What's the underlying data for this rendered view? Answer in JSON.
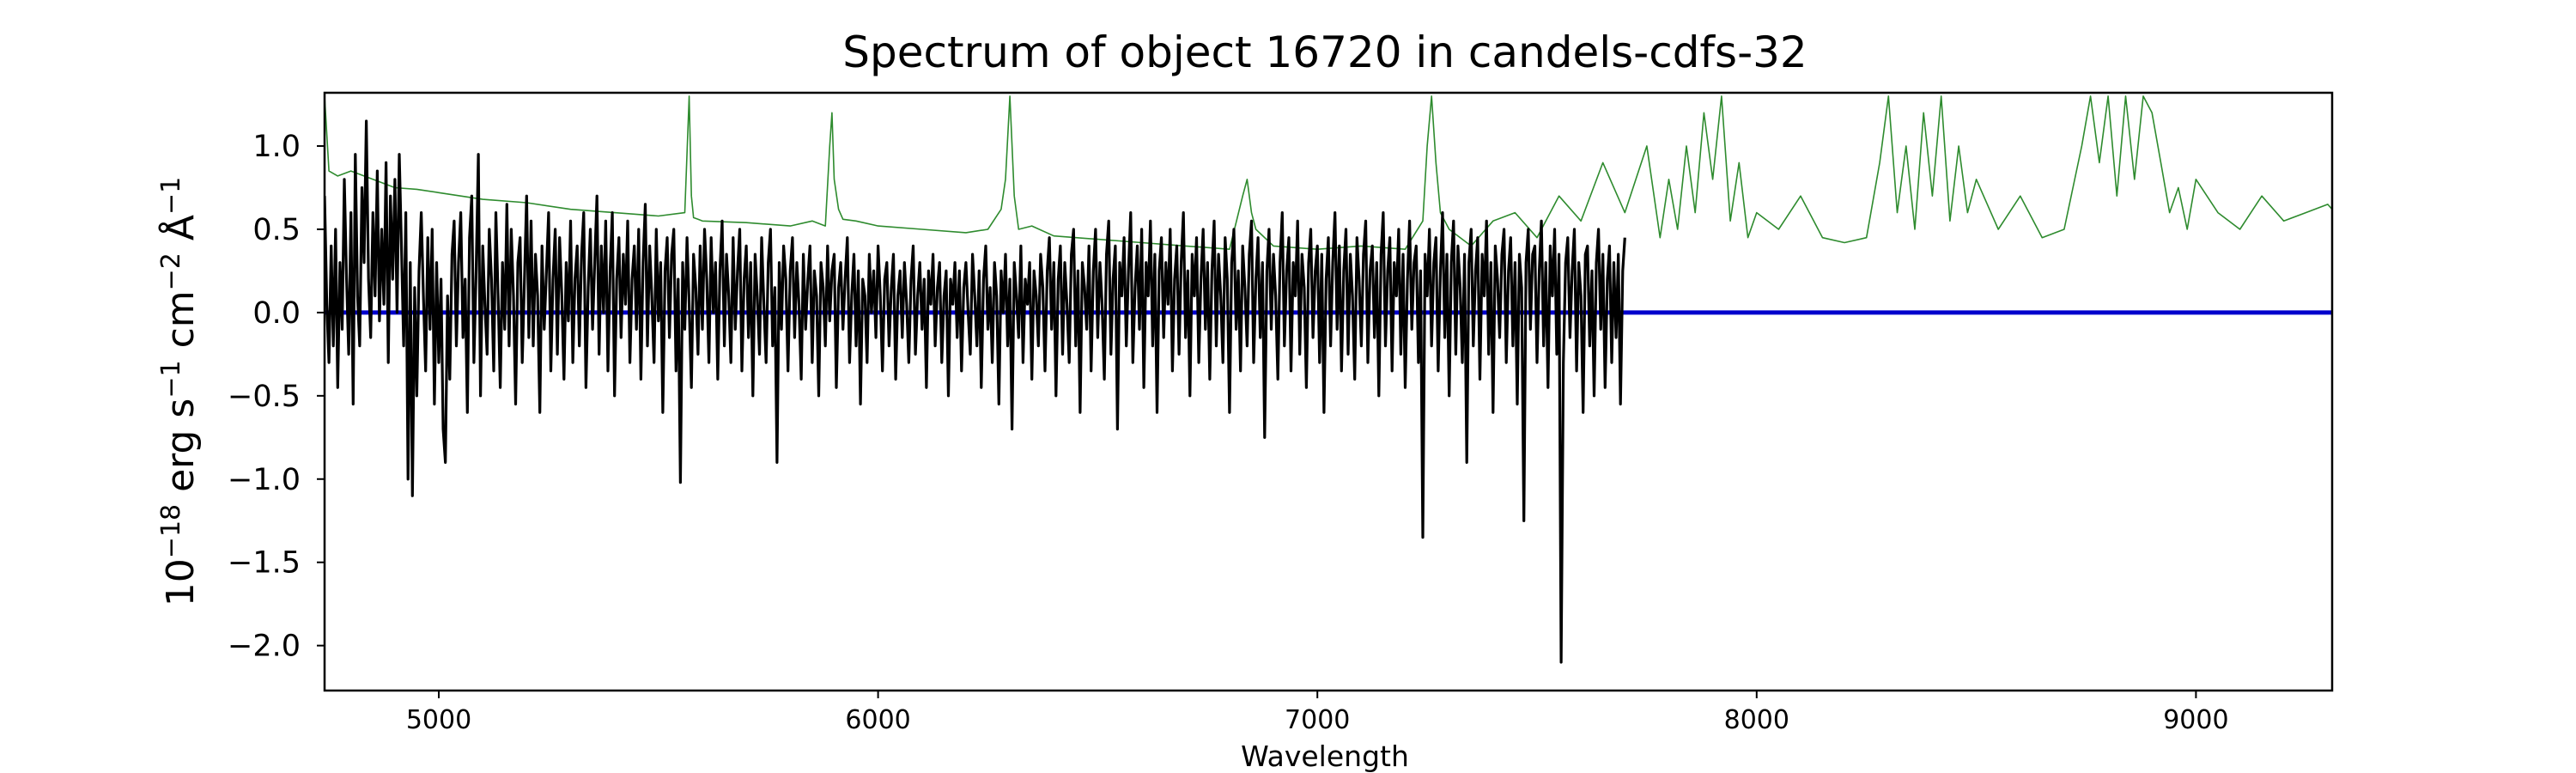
{
  "chart_data": {
    "type": "line",
    "title": "Spectrum of object 16720 in candels-cdfs-32",
    "xlabel": "Wavelength",
    "ylabel_parts": {
      "base": "10",
      "exp1": "−18",
      "unit1": " erg s",
      "exp2": "−1",
      "unit2": " cm",
      "exp3": "−2",
      "unit3": " Å",
      "exp4": "−1"
    },
    "xlim": [
      4740,
      9310
    ],
    "ylim": [
      -2.27,
      1.32
    ],
    "xticks": [
      5000,
      6000,
      7000,
      8000,
      9000
    ],
    "xtick_labels": [
      "5000",
      "6000",
      "7000",
      "8000",
      "9000"
    ],
    "yticks": [
      1.0,
      0.5,
      0.0,
      -0.5,
      -1.0,
      -1.5,
      -2.0
    ],
    "ytick_labels": [
      "1.0",
      "0.5",
      "0.0",
      "−0.5",
      "−1.0",
      "−1.5",
      "−2.0"
    ],
    "grid": false,
    "series": [
      {
        "role": "flux",
        "color": "#000000",
        "x_start": 4740,
        "x_step": 5,
        "y": [
          0.7,
          0.05,
          -0.3,
          0.4,
          -0.2,
          0.5,
          -0.45,
          0.3,
          -0.1,
          0.8,
          0.2,
          -0.25,
          0.6,
          -0.55,
          0.95,
          0.1,
          -0.2,
          0.75,
          0.3,
          1.15,
          0.2,
          -0.15,
          0.6,
          0.1,
          0.85,
          -0.05,
          0.5,
          0.05,
          0.9,
          -0.3,
          0.7,
          0.2,
          0.8,
          0.0,
          0.95,
          0.4,
          -0.2,
          0.6,
          -1.0,
          0.3,
          -1.1,
          0.15,
          -0.5,
          0.25,
          0.6,
          0.1,
          -0.35,
          0.45,
          -0.1,
          0.5,
          -0.55,
          0.3,
          -0.3,
          0.2,
          -0.7,
          -0.9,
          0.1,
          -0.4,
          0.35,
          0.55,
          -0.2,
          0.3,
          0.6,
          -0.15,
          0.2,
          -0.6,
          0.45,
          0.7,
          -0.3,
          0.25,
          0.95,
          -0.5,
          0.4,
          0.05,
          -0.25,
          0.5,
          0.2,
          -0.35,
          0.6,
          0.1,
          -0.45,
          0.3,
          -0.1,
          0.65,
          -0.2,
          0.5,
          0.1,
          -0.55,
          0.3,
          0.45,
          -0.3,
          0.2,
          0.7,
          -0.15,
          0.55,
          -0.2,
          0.35,
          0.1,
          -0.6,
          0.4,
          -0.1,
          0.25,
          0.6,
          -0.35,
          0.2,
          0.5,
          -0.25,
          0.45,
          0.1,
          -0.4,
          0.3,
          -0.05,
          0.55,
          -0.3,
          0.2,
          0.4,
          -0.2,
          0.35,
          0.6,
          -0.45,
          0.15,
          0.5,
          -0.1,
          0.3,
          0.7,
          -0.25,
          0.4,
          0.0,
          0.55,
          -0.35,
          0.25,
          0.6,
          -0.5,
          0.2,
          0.45,
          -0.15,
          0.35,
          0.05,
          0.55,
          -0.3,
          0.2,
          0.4,
          -0.1,
          0.5,
          -0.4,
          0.3,
          0.65,
          -0.2,
          0.4,
          0.1,
          -0.3,
          0.5,
          -0.05,
          0.3,
          -0.6,
          0.25,
          0.45,
          -0.15,
          0.35,
          0.5,
          -0.35,
          0.2,
          -1.02,
          0.3,
          -0.1,
          0.45,
          0.05,
          -0.45,
          0.35,
          0.15,
          -0.25,
          0.4,
          -0.1,
          0.5,
          0.2,
          -0.3,
          0.45,
          0.0,
          0.3,
          -0.4,
          0.25,
          0.55,
          -0.2,
          0.35,
          0.1,
          -0.3,
          0.45,
          -0.1,
          0.25,
          0.5,
          -0.35,
          0.2,
          0.4,
          -0.15,
          0.3,
          -0.5,
          0.35,
          0.1,
          -0.25,
          0.45,
          0.05,
          -0.3,
          0.3,
          0.5,
          -0.2,
          0.15,
          -0.9,
          0.3,
          -0.1,
          0.4,
          0.2,
          -0.35,
          0.25,
          0.45,
          -0.15,
          0.3,
          0.05,
          -0.4,
          0.35,
          -0.1,
          0.2,
          0.4,
          -0.3,
          0.25,
          0.1,
          -0.5,
          0.3,
          0.15,
          -0.2,
          0.4,
          -0.05,
          0.25,
          0.35,
          -0.45,
          0.15,
          0.3,
          -0.1,
          0.2,
          0.45,
          -0.3,
          0.1,
          0.35,
          -0.2,
          0.25,
          -0.55,
          0.2,
          0.1,
          -0.3,
          0.35,
          0.0,
          0.25,
          -0.15,
          0.4,
          0.1,
          -0.35,
          0.2,
          0.3,
          -0.2,
          0.15,
          0.35,
          -0.4,
          0.1,
          0.25,
          -0.15,
          0.3,
          0.05,
          -0.3,
          0.2,
          0.4,
          -0.25,
          0.1,
          0.3,
          -0.1,
          0.2,
          -0.45,
          0.25,
          0.05,
          0.35,
          -0.2,
          0.15,
          0.3,
          -0.3,
          0.1,
          0.25,
          -0.5,
          0.2,
          0.05,
          0.3,
          -0.15,
          0.25,
          -0.35,
          0.15,
          0.3,
          0.0,
          -0.25,
          0.35,
          0.1,
          -0.2,
          0.25,
          -0.45,
          0.2,
          0.4,
          -0.1,
          0.15,
          -0.3,
          0.3,
          0.1,
          -0.55,
          0.25,
          0.0,
          0.35,
          -0.2,
          0.2,
          -0.7,
          0.3,
          0.1,
          -0.15,
          0.4,
          -0.3,
          0.2,
          0.05,
          0.3,
          -0.4,
          0.25,
          0.1,
          -0.2,
          0.35,
          0.15,
          -0.35,
          0.25,
          0.45,
          -0.1,
          0.3,
          -0.5,
          0.2,
          0.4,
          -0.25,
          0.3,
          0.05,
          -0.3,
          0.35,
          0.5,
          -0.2,
          0.25,
          -0.6,
          0.3,
          0.15,
          -0.1,
          0.4,
          -0.35,
          0.25,
          0.5,
          -0.15,
          0.3,
          0.05,
          -0.4,
          0.35,
          0.55,
          -0.25,
          0.2,
          0.4,
          -0.7,
          0.3,
          0.1,
          0.45,
          -0.2,
          0.25,
          0.6,
          -0.3,
          0.15,
          0.4,
          -0.1,
          0.5,
          -0.45,
          0.3,
          0.1,
          0.55,
          -0.2,
          0.35,
          -0.6,
          0.25,
          0.45,
          -0.15,
          0.3,
          0.05,
          0.5,
          -0.35,
          0.2,
          0.4,
          -0.25,
          0.3,
          0.6,
          -0.15,
          0.25,
          -0.5,
          0.35,
          0.1,
          0.45,
          -0.3,
          0.2,
          0.5,
          -0.1,
          0.3,
          -0.4,
          0.25,
          0.55,
          -0.2,
          0.35,
          0.1,
          -0.3,
          0.45,
          0.2,
          -0.6,
          0.3,
          0.5,
          -0.1,
          0.25,
          -0.35,
          0.4,
          0.15,
          -0.2,
          0.35,
          0.55,
          -0.3,
          0.2,
          0.45,
          -0.15,
          0.3,
          -0.75,
          0.25,
          0.5,
          -0.1,
          0.35,
          0.1,
          -0.4,
          0.3,
          0.6,
          -0.2,
          0.25,
          0.45,
          -0.35,
          0.3,
          0.1,
          0.55,
          -0.25,
          0.35,
          0.15,
          -0.45,
          0.3,
          0.5,
          -0.15,
          0.25,
          0.4,
          -0.3,
          0.35,
          -0.6,
          0.2,
          0.45,
          -0.2,
          0.3,
          0.6,
          -0.1,
          0.4,
          -0.35,
          0.25,
          0.5,
          -0.25,
          0.35,
          0.1,
          -0.4,
          0.45,
          0.2,
          -0.2,
          0.35,
          0.55,
          -0.3,
          0.25,
          0.4,
          -0.15,
          0.3,
          -0.5,
          0.35,
          0.6,
          -0.2,
          0.25,
          0.45,
          -0.35,
          0.3,
          0.1,
          0.5,
          -0.25,
          0.35,
          -0.45,
          0.2,
          0.55,
          -0.1,
          0.3,
          0.4,
          -0.3,
          0.25,
          -1.35,
          0.35,
          0.1,
          0.5,
          -0.2,
          0.3,
          0.45,
          -0.35,
          0.25,
          0.6,
          -0.15,
          0.35,
          -0.5,
          0.3,
          0.55,
          -0.25,
          0.4,
          0.15,
          -0.3,
          0.35,
          -0.9,
          0.3,
          0.5,
          -0.2,
          0.25,
          0.45,
          -0.4,
          0.35,
          0.1,
          0.55,
          -0.25,
          0.3,
          -0.6,
          0.4,
          0.2,
          -0.15,
          0.35,
          0.5,
          -0.3,
          0.25,
          0.45,
          -0.2,
          0.3,
          -0.55,
          0.35,
          0.15,
          -1.25,
          0.3,
          0.5,
          -0.1,
          0.35,
          0.4,
          -0.3,
          0.25,
          0.55,
          -0.2,
          0.3,
          -0.45,
          0.4,
          0.1,
          0.5,
          -0.25,
          0.35,
          -2.1,
          -0.3,
          0.3,
          0.45,
          -0.15,
          0.25,
          0.5,
          -0.35,
          0.3,
          0.1,
          -0.6,
          0.35,
          0.4,
          -0.2,
          0.25,
          -0.5,
          0.3,
          0.5,
          -0.1,
          0.35,
          -0.45,
          0.2,
          0.4,
          -0.3,
          0.3,
          -0.15,
          0.35,
          -0.55,
          0.25,
          0.45
        ]
      },
      {
        "role": "error",
        "color": "#2e8b2e",
        "x": [
          4740,
          4750,
          4770,
          4800,
          4850,
          4900,
          4950,
          5000,
          5100,
          5200,
          5300,
          5400,
          5500,
          5560,
          5570,
          5575,
          5580,
          5590,
          5600,
          5700,
          5800,
          5850,
          5880,
          5890,
          5895,
          5900,
          5910,
          5920,
          5950,
          6000,
          6100,
          6200,
          6250,
          6280,
          6290,
          6300,
          6310,
          6320,
          6350,
          6400,
          6500,
          6600,
          6700,
          6800,
          6830,
          6840,
          6850,
          6860,
          6900,
          7000,
          7100,
          7200,
          7240,
          7250,
          7260,
          7270,
          7280,
          7300,
          7350,
          7400,
          7450,
          7500,
          7550,
          7600,
          7650,
          7700,
          7750,
          7780,
          7800,
          7820,
          7840,
          7860,
          7880,
          7900,
          7920,
          7940,
          7960,
          7980,
          8000,
          8050,
          8100,
          8150,
          8200,
          8250,
          8280,
          8300,
          8320,
          8340,
          8360,
          8380,
          8400,
          8420,
          8440,
          8460,
          8480,
          8500,
          8550,
          8600,
          8650,
          8700,
          8740,
          8760,
          8780,
          8800,
          8820,
          8840,
          8860,
          8880,
          8900,
          8920,
          8940,
          8960,
          8980,
          9000,
          9050,
          9100,
          9150,
          9200,
          9250,
          9300,
          9310
        ],
        "y": [
          1.3,
          0.85,
          0.82,
          0.85,
          0.8,
          0.75,
          0.74,
          0.72,
          0.68,
          0.66,
          0.62,
          0.6,
          0.58,
          0.6,
          1.3,
          0.7,
          0.57,
          0.56,
          0.55,
          0.54,
          0.52,
          0.55,
          0.52,
          1.0,
          1.2,
          0.8,
          0.62,
          0.56,
          0.55,
          0.52,
          0.5,
          0.48,
          0.5,
          0.62,
          0.8,
          1.3,
          0.7,
          0.5,
          0.52,
          0.46,
          0.44,
          0.42,
          0.4,
          0.38,
          0.7,
          0.8,
          0.6,
          0.5,
          0.4,
          0.38,
          0.4,
          0.38,
          0.55,
          1.0,
          1.3,
          0.9,
          0.6,
          0.5,
          0.4,
          0.55,
          0.6,
          0.45,
          0.7,
          0.55,
          0.9,
          0.6,
          1.0,
          0.45,
          0.8,
          0.5,
          1.0,
          0.6,
          1.2,
          0.8,
          1.3,
          0.55,
          0.9,
          0.45,
          0.6,
          0.5,
          0.7,
          0.45,
          0.42,
          0.45,
          0.9,
          1.3,
          0.6,
          1.0,
          0.5,
          1.2,
          0.7,
          1.3,
          0.55,
          1.0,
          0.6,
          0.8,
          0.5,
          0.7,
          0.45,
          0.5,
          1.0,
          1.3,
          0.9,
          1.3,
          0.7,
          1.3,
          0.8,
          1.3,
          1.2,
          0.9,
          0.6,
          0.75,
          0.5,
          0.8,
          0.6,
          0.5,
          0.7,
          0.55,
          0.6,
          0.65,
          0.62
        ]
      },
      {
        "role": "zero",
        "color": "#0000cc",
        "x": [
          4740,
          9310
        ],
        "y": [
          0.0,
          0.0
        ]
      }
    ]
  }
}
